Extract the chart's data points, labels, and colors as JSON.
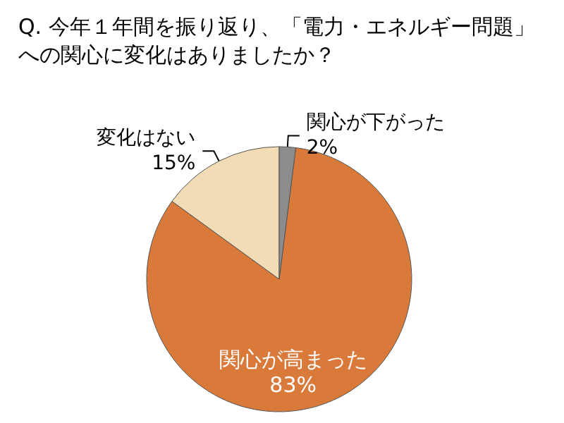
{
  "chart_data": {
    "type": "pie",
    "title": "Q. 今年１年間を振り返り、「電力・エネルギー問題」への関心に変化はありましたか？",
    "categories": [
      "関心が高まった",
      "変化はない",
      "関心が下がった"
    ],
    "values": [
      83,
      15,
      2
    ],
    "colors": [
      "#d9793a",
      "#f2dcb5",
      "#8c8c8c"
    ],
    "value_labels": [
      "83%",
      "15%",
      "2%"
    ]
  }
}
